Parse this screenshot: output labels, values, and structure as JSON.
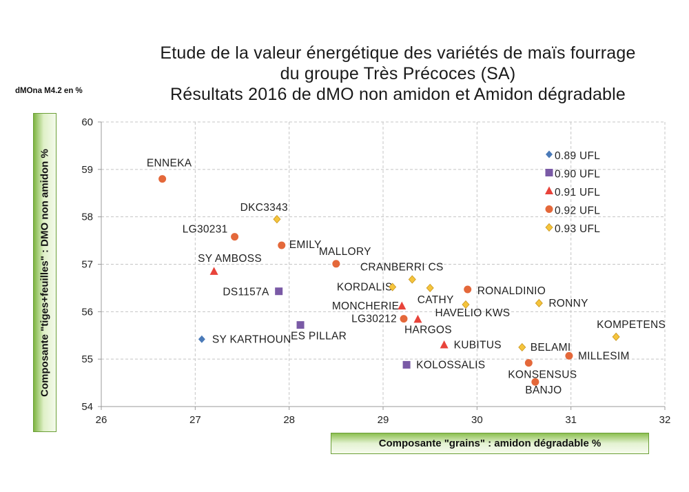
{
  "title_lines": [
    "Etude de la valeur énergétique des variétés de maïs fourrage",
    "du groupe Très Précoces (SA)",
    "Résultats 2016 de dMO non amidon et Amidon dégradable"
  ],
  "corner_label": "dMOna M4.2 en %",
  "colors": {
    "ufl089": "#4a7ab8",
    "ufl090": "#7a5aa6",
    "ufl091": "#e8433a",
    "ufl092": "#e4683a",
    "ufl093": "#f5c43c",
    "grid": "#c4c4c4",
    "axis": "#9a9a9a",
    "label_band": "#8cbf50"
  },
  "chart_data": {
    "type": "scatter",
    "title": "Etude de la valeur énergétique des variétés de maïs fourrage du groupe Très Précoces (SA) Résultats 2016 de dMO non amidon et Amidon dégradable",
    "xlabel": "Composante \"grains\" : amidon dégradable %",
    "ylabel": "Composante \"tiges+feuilles\" : DMO non amidon %",
    "xlim": [
      26,
      32
    ],
    "ylim": [
      54,
      60
    ],
    "x_ticks": [
      "26",
      "27",
      "28",
      "29",
      "30",
      "31",
      "32"
    ],
    "y_ticks": [
      "54",
      "55",
      "56",
      "57",
      "58",
      "59",
      "60"
    ],
    "grid": true,
    "legend_position": "top-right",
    "series": [
      {
        "name": "0.89 UFL",
        "marker": "diamond",
        "color_key": "ufl089",
        "points": [
          {
            "label": "SY KARTHOUN",
            "x": 27.07,
            "y": 55.42
          }
        ]
      },
      {
        "name": "0.90 UFL",
        "marker": "square",
        "color_key": "ufl090",
        "points": [
          {
            "label": "DS1157A",
            "x": 27.89,
            "y": 56.43
          },
          {
            "label": "ES PILLAR",
            "x": 28.12,
            "y": 55.72
          },
          {
            "label": "KOLOSSALIS",
            "x": 29.25,
            "y": 54.88
          }
        ]
      },
      {
        "name": "0.91 UFL",
        "marker": "triangle",
        "color_key": "ufl091",
        "points": [
          {
            "label": "SY AMBOSS",
            "x": 27.2,
            "y": 56.85
          },
          {
            "label": "MONCHERIE",
            "x": 29.2,
            "y": 56.12
          },
          {
            "label": "HARGOS",
            "x": 29.37,
            "y": 55.84
          },
          {
            "label": "KUBITUS",
            "x": 29.65,
            "y": 55.3
          }
        ]
      },
      {
        "name": "0.92 UFL",
        "marker": "circle",
        "color_key": "ufl092",
        "points": [
          {
            "label": "ENNEKA",
            "x": 26.65,
            "y": 58.8
          },
          {
            "label": "LG30231",
            "x": 27.42,
            "y": 57.58
          },
          {
            "label": "EMILY",
            "x": 27.92,
            "y": 57.4
          },
          {
            "label": "MALLORY",
            "x": 28.5,
            "y": 57.01
          },
          {
            "label": "RONALDINIO",
            "x": 29.9,
            "y": 56.47
          },
          {
            "label": "LG30212",
            "x": 29.22,
            "y": 55.85
          },
          {
            "label": "KONSENSUS",
            "x": 30.55,
            "y": 54.92
          },
          {
            "label": "BANJO",
            "x": 30.62,
            "y": 54.52
          },
          {
            "label": "MILLESIM",
            "x": 30.98,
            "y": 55.07
          }
        ]
      },
      {
        "name": "0.93 UFL",
        "marker": "diamond",
        "color_key": "ufl093",
        "points": [
          {
            "label": "DKC3343",
            "x": 27.87,
            "y": 57.95
          },
          {
            "label": "CRANBERRI CS",
            "x": 29.31,
            "y": 56.68
          },
          {
            "label": "KORDALIS",
            "x": 29.1,
            "y": 56.52
          },
          {
            "label": "CATHY",
            "x": 29.5,
            "y": 56.5
          },
          {
            "label": "HAVELIO KWS",
            "x": 29.88,
            "y": 56.15
          },
          {
            "label": "RONNY",
            "x": 30.66,
            "y": 56.18
          },
          {
            "label": "BELAMI",
            "x": 30.48,
            "y": 55.25
          },
          {
            "label": "KOMPETENS",
            "x": 31.48,
            "y": 55.47
          }
        ]
      }
    ]
  }
}
